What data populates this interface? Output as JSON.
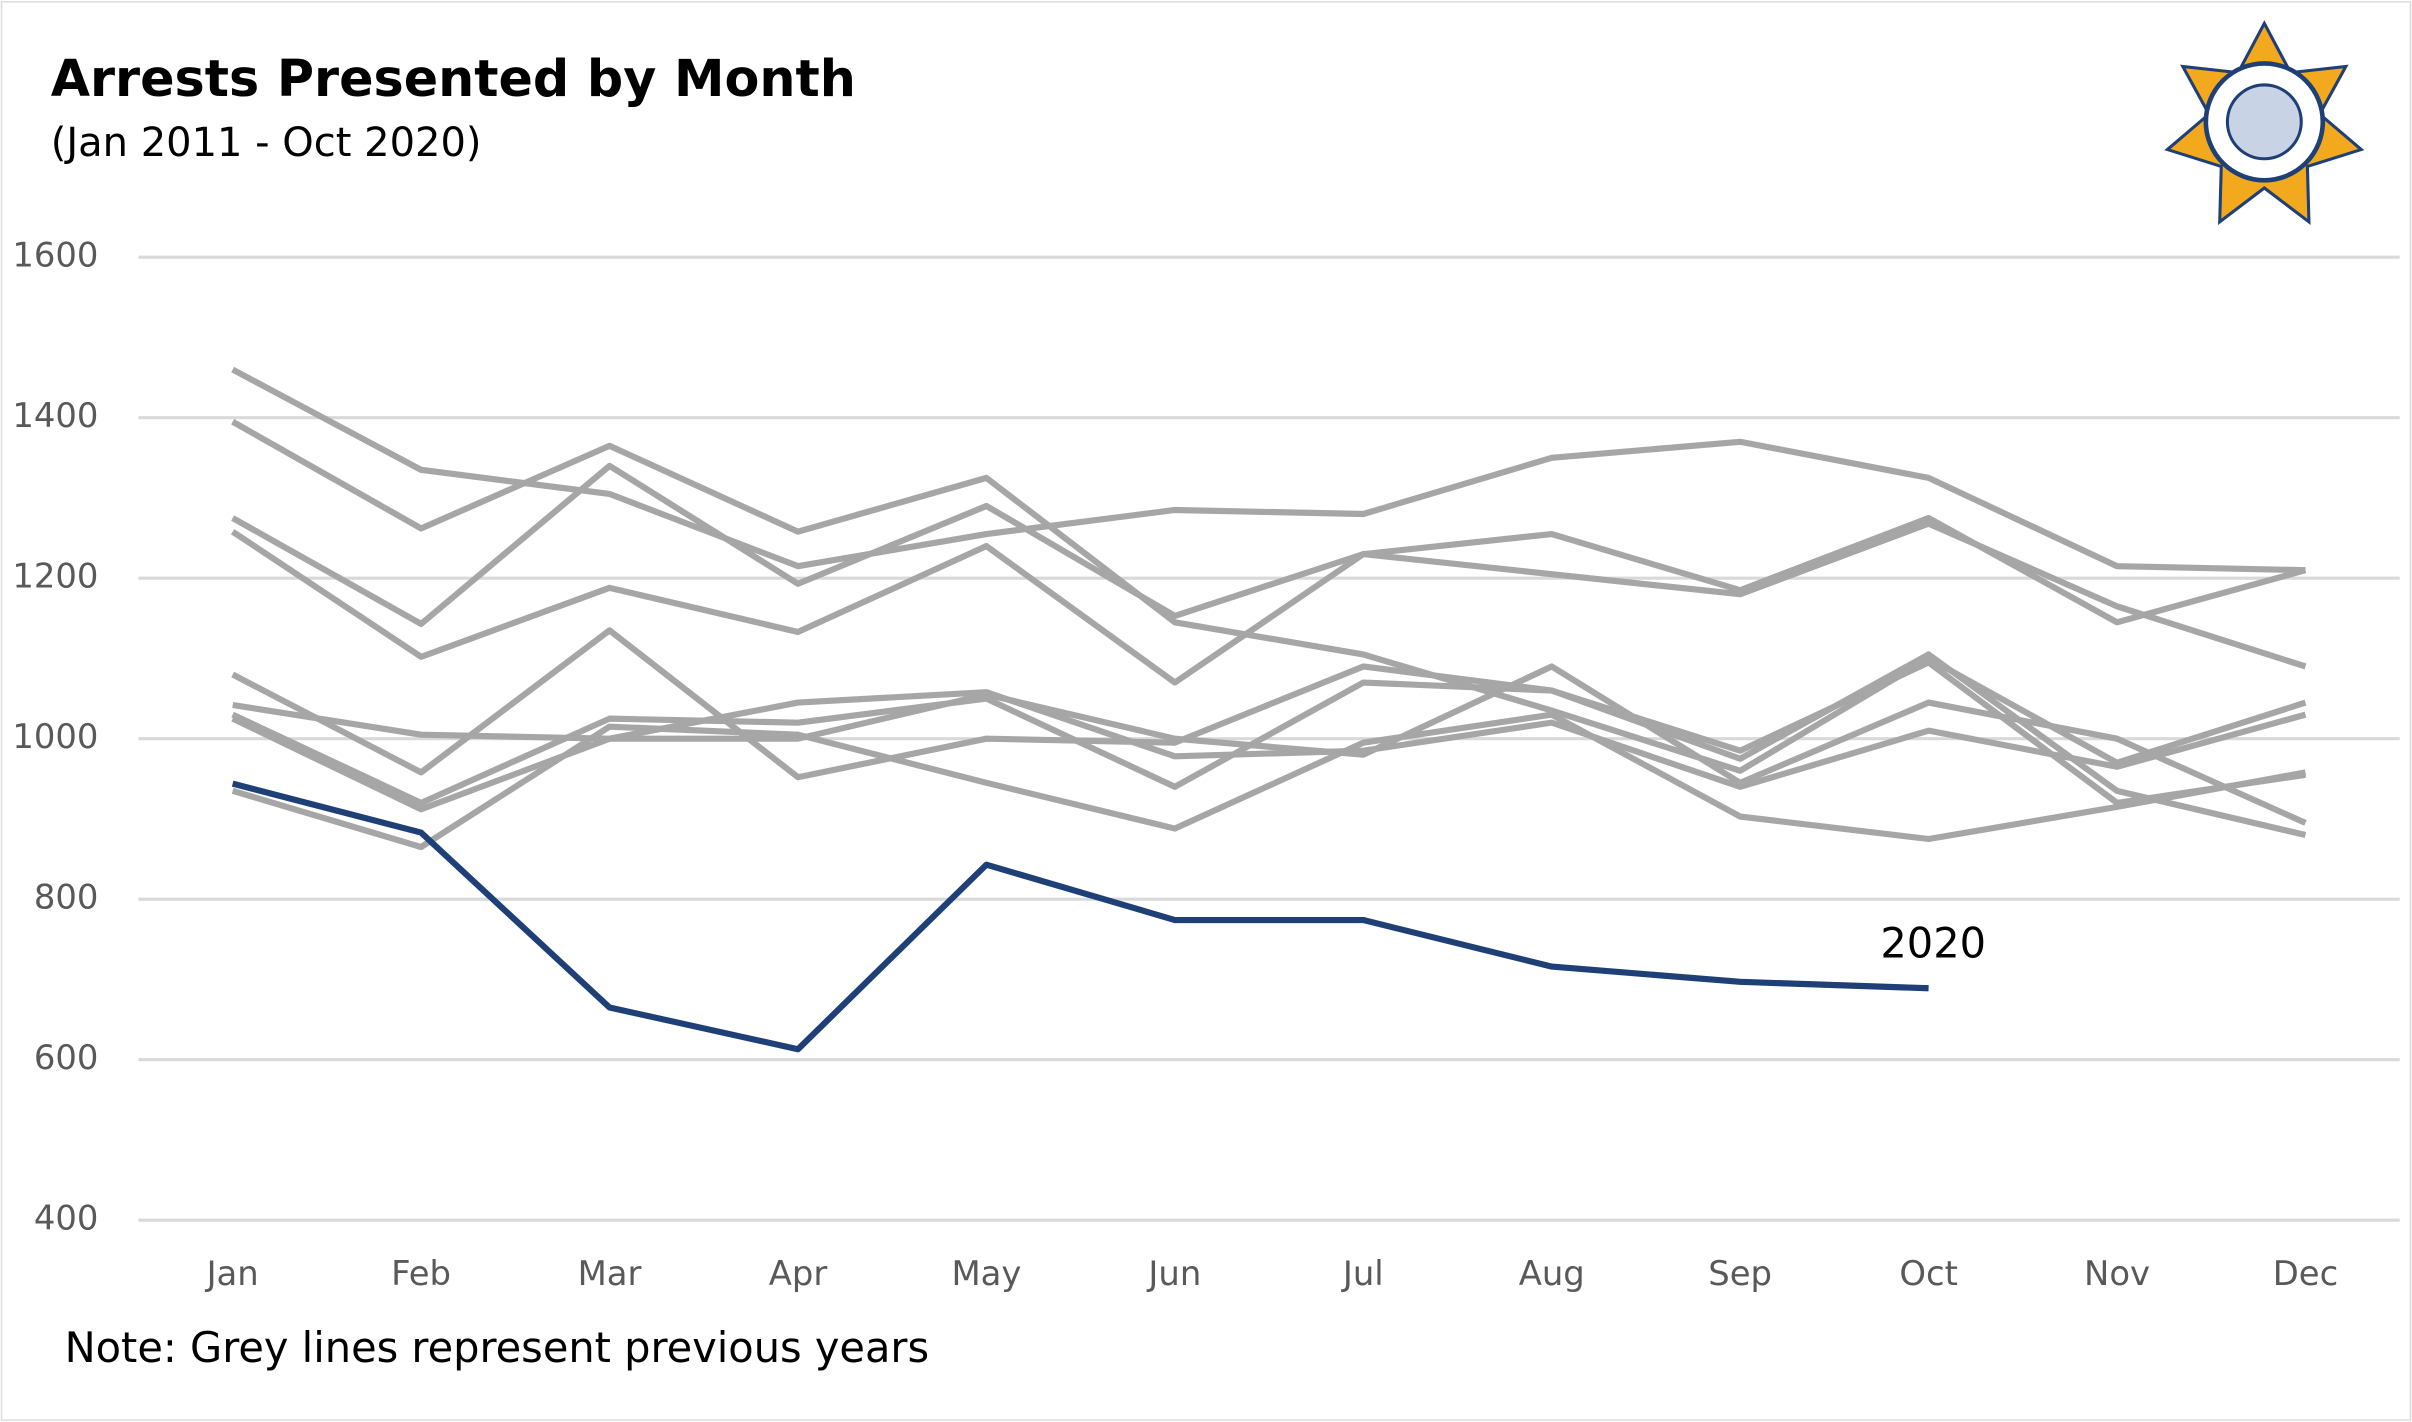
{
  "chart_data": {
    "type": "line",
    "title": "Arrests Presented by Month",
    "subtitle": "(Jan 2011 - Oct 2020)",
    "note": "Note: Grey lines represent previous years",
    "categories": [
      "Jan",
      "Feb",
      "Mar",
      "Apr",
      "May",
      "Jun",
      "Jul",
      "Aug",
      "Sep",
      "Oct",
      "Nov",
      "Dec"
    ],
    "ylim": [
      400,
      1600
    ],
    "yticks": [
      400,
      600,
      800,
      1000,
      1200,
      1400,
      1600
    ],
    "grid": true,
    "series": [
      {
        "color": "#a6a6a6",
        "values": [
          1460,
          1335,
          1305,
          1215,
          1255,
          1285,
          1280,
          1350,
          1370,
          1325,
          1215,
          1210
        ]
      },
      {
        "color": "#a6a6a6",
        "values": [
          1395,
          1262,
          1365,
          1258,
          1325,
          1145,
          1105,
          1035,
          960,
          1100,
          970,
          1045
        ]
      },
      {
        "color": "#a6a6a6",
        "values": [
          1275,
          1143,
          1340,
          1193,
          1290,
          1153,
          1230,
          1255,
          1185,
          1275,
          1145,
          1210
        ]
      },
      {
        "color": "#a6a6a6",
        "values": [
          1258,
          1102,
          1188,
          1133,
          1240,
          1070,
          1230,
          1205,
          1180,
          1268,
          1165,
          1090
        ]
      },
      {
        "color": "#a6a6a6",
        "values": [
          1080,
          958,
          1135,
          952,
          1000,
          995,
          1090,
          1060,
          975,
          1105,
          935,
          880
        ]
      },
      {
        "color": "#a6a6a6",
        "values": [
          1042,
          1005,
          1000,
          1000,
          1055,
          1000,
          980,
          1090,
          945,
          1045,
          1000,
          895
        ]
      },
      {
        "color": "#a6a6a6",
        "values": [
          1030,
          920,
          1025,
          1020,
          1050,
          940,
          1070,
          1060,
          985,
          1095,
          920,
          955
        ]
      },
      {
        "color": "#a6a6a6",
        "values": [
          1025,
          912,
          1000,
          1045,
          1058,
          978,
          985,
          1020,
          940,
          1010,
          965,
          1030
        ]
      },
      {
        "color": "#a6a6a6",
        "values": [
          935,
          865,
          1015,
          1005,
          945,
          888,
          995,
          1030,
          903,
          875,
          915,
          958
        ]
      },
      {
        "name": "2020",
        "color": "#1f3f77",
        "values": [
          944,
          883,
          665,
          613,
          843,
          774,
          774,
          716,
          697,
          689,
          null,
          null
        ]
      }
    ]
  }
}
